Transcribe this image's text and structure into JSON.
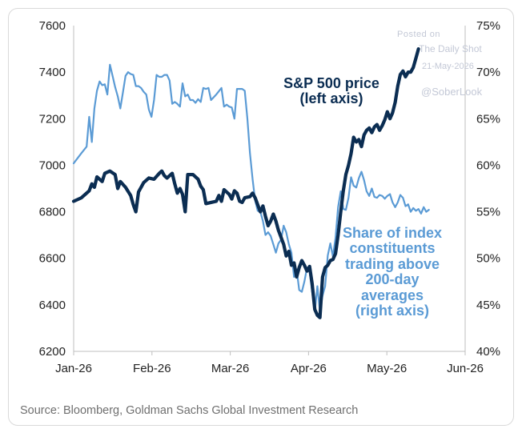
{
  "chart_data": {
    "type": "line",
    "x_ticks": [
      "Jan-26",
      "Feb-26",
      "Mar-26",
      "Apr-26",
      "May-26",
      "Jun-26"
    ],
    "x_range_days": [
      0,
      151
    ],
    "y_left": {
      "ticks": [
        "6200",
        "6400",
        "6600",
        "6800",
        "7000",
        "7200",
        "7400",
        "7600"
      ],
      "range": [
        6200,
        7600
      ]
    },
    "y_right": {
      "ticks": [
        "40%",
        "45%",
        "50%",
        "55%",
        "60%",
        "65%",
        "70%",
        "75%"
      ],
      "range": [
        40,
        75
      ]
    },
    "grid": false,
    "annotations": {
      "sp500": [
        "S&P 500 price",
        "(left axis)"
      ],
      "share": [
        "Share of index",
        "constituents",
        "trading above",
        "200-day",
        "averages",
        "(right axis)"
      ]
    },
    "series": [
      {
        "axis": "left",
        "color": "#0b2d52",
        "points": [
          [
            0,
            6845
          ],
          [
            3,
            6860
          ],
          [
            6,
            6890
          ],
          [
            7,
            6920
          ],
          [
            8,
            6905
          ],
          [
            9,
            6950
          ],
          [
            11,
            6930
          ],
          [
            12,
            6965
          ],
          [
            14,
            6975
          ],
          [
            16,
            6960
          ],
          [
            17,
            6900
          ],
          [
            18,
            6930
          ],
          [
            20,
            6905
          ],
          [
            22,
            6870
          ],
          [
            23,
            6830
          ],
          [
            24,
            6800
          ],
          [
            25,
            6885
          ],
          [
            27,
            6925
          ],
          [
            29,
            6945
          ],
          [
            31,
            6940
          ],
          [
            33,
            6965
          ],
          [
            34,
            6975
          ],
          [
            35,
            6955
          ],
          [
            36,
            6945
          ],
          [
            38,
            6965
          ],
          [
            39,
            6920
          ],
          [
            40,
            6880
          ],
          [
            41,
            6900
          ],
          [
            42,
            6875
          ],
          [
            43,
            6800
          ],
          [
            44,
            6960
          ],
          [
            46,
            6960
          ],
          [
            48,
            6940
          ],
          [
            49,
            6910
          ],
          [
            50,
            6895
          ],
          [
            51,
            6835
          ],
          [
            53,
            6840
          ],
          [
            55,
            6845
          ],
          [
            56,
            6870
          ],
          [
            57,
            6845
          ],
          [
            58,
            6895
          ],
          [
            59,
            6885
          ],
          [
            60,
            6875
          ],
          [
            61,
            6855
          ],
          [
            62,
            6890
          ],
          [
            63,
            6880
          ],
          [
            64,
            6845
          ],
          [
            65,
            6840
          ],
          [
            66,
            6860
          ],
          [
            68,
            6865
          ],
          [
            69,
            6880
          ],
          [
            70,
            6860
          ],
          [
            71,
            6830
          ],
          [
            72,
            6800
          ],
          [
            73,
            6825
          ],
          [
            74,
            6780
          ],
          [
            75,
            6740
          ],
          [
            76,
            6760
          ],
          [
            77,
            6790
          ],
          [
            78,
            6760
          ],
          [
            79,
            6720
          ],
          [
            80,
            6690
          ],
          [
            81,
            6660
          ],
          [
            82,
            6610
          ],
          [
            83,
            6630
          ],
          [
            84,
            6570
          ],
          [
            85,
            6580
          ],
          [
            86,
            6520
          ],
          [
            87,
            6560
          ],
          [
            88,
            6590
          ],
          [
            89,
            6570
          ],
          [
            90,
            6545
          ],
          [
            91,
            6565
          ],
          [
            92,
            6490
          ],
          [
            93,
            6380
          ],
          [
            94,
            6355
          ],
          [
            95,
            6345
          ],
          [
            96,
            6520
          ],
          [
            97,
            6560
          ],
          [
            98,
            6570
          ],
          [
            99,
            6590
          ],
          [
            100,
            6595
          ],
          [
            101,
            6620
          ],
          [
            102,
            6700
          ],
          [
            103,
            6800
          ],
          [
            104,
            6890
          ],
          [
            105,
            6960
          ],
          [
            106,
            7000
          ],
          [
            107,
            7050
          ],
          [
            108,
            7120
          ],
          [
            109,
            7100
          ],
          [
            110,
            7110
          ],
          [
            111,
            7080
          ],
          [
            112,
            7130
          ],
          [
            113,
            7150
          ],
          [
            114,
            7160
          ],
          [
            115,
            7140
          ],
          [
            116,
            7165
          ],
          [
            117,
            7175
          ],
          [
            118,
            7150
          ],
          [
            119,
            7170
          ],
          [
            120,
            7195
          ],
          [
            121,
            7230
          ],
          [
            122,
            7200
          ],
          [
            123,
            7225
          ],
          [
            124,
            7270
          ],
          [
            125,
            7340
          ],
          [
            126,
            7390
          ],
          [
            127,
            7405
          ],
          [
            128,
            7380
          ],
          [
            129,
            7400
          ],
          [
            130,
            7400
          ],
          [
            131,
            7420
          ],
          [
            132,
            7460
          ],
          [
            133,
            7500
          ]
        ]
      },
      {
        "axis": "right",
        "color": "#5b9bd5",
        "points": [
          [
            0,
            60.2
          ],
          [
            3,
            61.3
          ],
          [
            5,
            62.0
          ],
          [
            6,
            65.2
          ],
          [
            7,
            62.5
          ],
          [
            8,
            66.1
          ],
          [
            9,
            68.0
          ],
          [
            10,
            69.0
          ],
          [
            11,
            68.6
          ],
          [
            12,
            68.7
          ],
          [
            13,
            67.6
          ],
          [
            14,
            70.8
          ],
          [
            15,
            69.6
          ],
          [
            16,
            68.4
          ],
          [
            17,
            67.4
          ],
          [
            18,
            66.1
          ],
          [
            19,
            67.8
          ],
          [
            20,
            69.6
          ],
          [
            21,
            70.0
          ],
          [
            22,
            69.8
          ],
          [
            23,
            69.7
          ],
          [
            24,
            68.5
          ],
          [
            25,
            68.5
          ],
          [
            26,
            68.3
          ],
          [
            27,
            67.9
          ],
          [
            28,
            67.6
          ],
          [
            29,
            66.0
          ],
          [
            30,
            65.2
          ],
          [
            31,
            67.0
          ],
          [
            32,
            69.7
          ],
          [
            33,
            69.5
          ],
          [
            34,
            69.5
          ],
          [
            35,
            69.7
          ],
          [
            36,
            69.7
          ],
          [
            37,
            69.1
          ],
          [
            38,
            66.6
          ],
          [
            39,
            66.8
          ],
          [
            40,
            66.6
          ],
          [
            41,
            66.3
          ],
          [
            42,
            68.8
          ],
          [
            43,
            67.4
          ],
          [
            44,
            67.6
          ],
          [
            45,
            67.0
          ],
          [
            46,
            67.0
          ],
          [
            47,
            66.7
          ],
          [
            48,
            67.1
          ],
          [
            49,
            66.8
          ],
          [
            50,
            68.3
          ],
          [
            51,
            68.2
          ],
          [
            52,
            68.3
          ],
          [
            53,
            67.0
          ],
          [
            55,
            67.6
          ],
          [
            57,
            68.3
          ],
          [
            58,
            66.3
          ],
          [
            59,
            66.5
          ],
          [
            60,
            66.3
          ],
          [
            61,
            66.2
          ],
          [
            62,
            65.0
          ],
          [
            63,
            68.2
          ],
          [
            65,
            68.2
          ],
          [
            66,
            68.0
          ],
          [
            67,
            65.0
          ],
          [
            68,
            61.3
          ],
          [
            69,
            58.5
          ],
          [
            70,
            56.2
          ],
          [
            71,
            55.1
          ],
          [
            72,
            55.0
          ],
          [
            73,
            54.0
          ],
          [
            74,
            52.5
          ],
          [
            75,
            52.8
          ],
          [
            76,
            52.4
          ],
          [
            77,
            51.5
          ],
          [
            78,
            50.6
          ],
          [
            79,
            51.6
          ],
          [
            80,
            52.0
          ],
          [
            81,
            53.5
          ],
          [
            82,
            52.8
          ],
          [
            83,
            51.5
          ],
          [
            84,
            50.6
          ],
          [
            85,
            48.0
          ],
          [
            86,
            48.8
          ],
          [
            87,
            46.6
          ],
          [
            88,
            46.4
          ],
          [
            89,
            47.5
          ],
          [
            90,
            49.0
          ],
          [
            91,
            48.6
          ],
          [
            92,
            46.4
          ],
          [
            93,
            44.3
          ],
          [
            94,
            47.0
          ],
          [
            95,
            44.3
          ],
          [
            96,
            46.0
          ],
          [
            97,
            47.0
          ],
          [
            98,
            50.3
          ],
          [
            99,
            51.6
          ],
          [
            100,
            50.2
          ],
          [
            101,
            52.2
          ],
          [
            102,
            55.5
          ],
          [
            103,
            57.2
          ],
          [
            104,
            55.3
          ],
          [
            105,
            55.2
          ],
          [
            106,
            56.5
          ],
          [
            107,
            58.7
          ],
          [
            108,
            57.8
          ],
          [
            109,
            57.6
          ],
          [
            110,
            58.6
          ],
          [
            111,
            59.3
          ],
          [
            112,
            58.4
          ],
          [
            113,
            57.2
          ],
          [
            114,
            56.7
          ],
          [
            115,
            57.5
          ],
          [
            116,
            56.6
          ],
          [
            117,
            56.5
          ],
          [
            118,
            56.8
          ],
          [
            119,
            56.7
          ],
          [
            120,
            56.4
          ],
          [
            121,
            56.7
          ],
          [
            122,
            56.9
          ],
          [
            123,
            56.0
          ],
          [
            124,
            55.5
          ],
          [
            125,
            56.0
          ],
          [
            126,
            56.8
          ],
          [
            127,
            56.5
          ],
          [
            128,
            55.6
          ],
          [
            129,
            55.8
          ],
          [
            130,
            55.0
          ],
          [
            131,
            55.4
          ],
          [
            132,
            55.1
          ],
          [
            133,
            55.3
          ],
          [
            134,
            54.8
          ],
          [
            135,
            55.5
          ],
          [
            136,
            55.0
          ],
          [
            137,
            55.2
          ]
        ]
      }
    ]
  },
  "source": "Source: Bloomberg, Goldman Sachs Global Investment Research",
  "watermark": {
    "posted_on": "Posted on",
    "site": "The Daily Shot",
    "date": "21-May-2026",
    "handle": "@SoberLook"
  }
}
